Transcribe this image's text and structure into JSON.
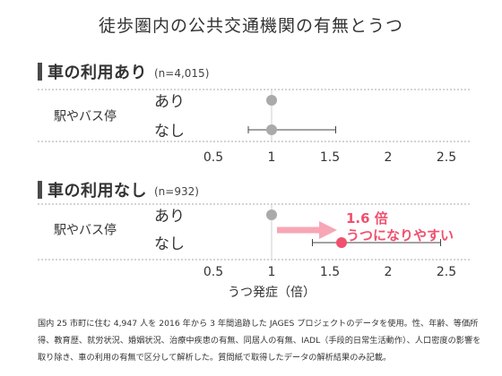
{
  "title": "徒歩圏内の公共交通機関の有無とうつ",
  "chart_data": {
    "type": "forest",
    "xlabel": "うつ発症（倍）",
    "xlim": [
      0.3,
      2.75
    ],
    "ticks": [
      0.5,
      1,
      1.5,
      2,
      2.5
    ],
    "tick_labels": [
      "0.5",
      "1",
      "1.5",
      "2",
      "2.5"
    ],
    "row_group_label": "駅やバス停",
    "panels": [
      {
        "label": "車の利用あり",
        "n": "(n=4,015)",
        "rows": [
          {
            "label": "あり",
            "estimate": 1.0,
            "ci_low": null,
            "ci_high": null,
            "color": "#aaaaaa"
          },
          {
            "label": "なし",
            "estimate": 1.0,
            "ci_low": 0.8,
            "ci_high": 1.55,
            "color": "#aaaaaa"
          }
        ]
      },
      {
        "label": "車の利用なし",
        "n": "(n=932)",
        "rows": [
          {
            "label": "あり",
            "estimate": 1.0,
            "ci_low": null,
            "ci_high": null,
            "color": "#aaaaaa"
          },
          {
            "label": "なし",
            "estimate": 1.6,
            "ci_low": 1.35,
            "ci_high": 2.45,
            "color": "#f0506e"
          }
        ]
      }
    ],
    "annotation": {
      "line1": "1.6 倍",
      "line2": "うつになりやすい",
      "color": "#f0506e",
      "arrow_color": "#f7a6b6"
    }
  },
  "note": "国内 25 市町に住む 4,947 人を 2016 年から 3 年間追跡した JAGES プロジェクトのデータを使用。性、年齢、等価所得、教育歴、就労状況、婚姻状況、治療中疾患の有無、同居人の有無、IADL（手段的日常生活動作）、人口密度の影響を取り除き、車の利用の有無で区分して解析した。質問紙で取得したデータの解析結果のみ記載。"
}
